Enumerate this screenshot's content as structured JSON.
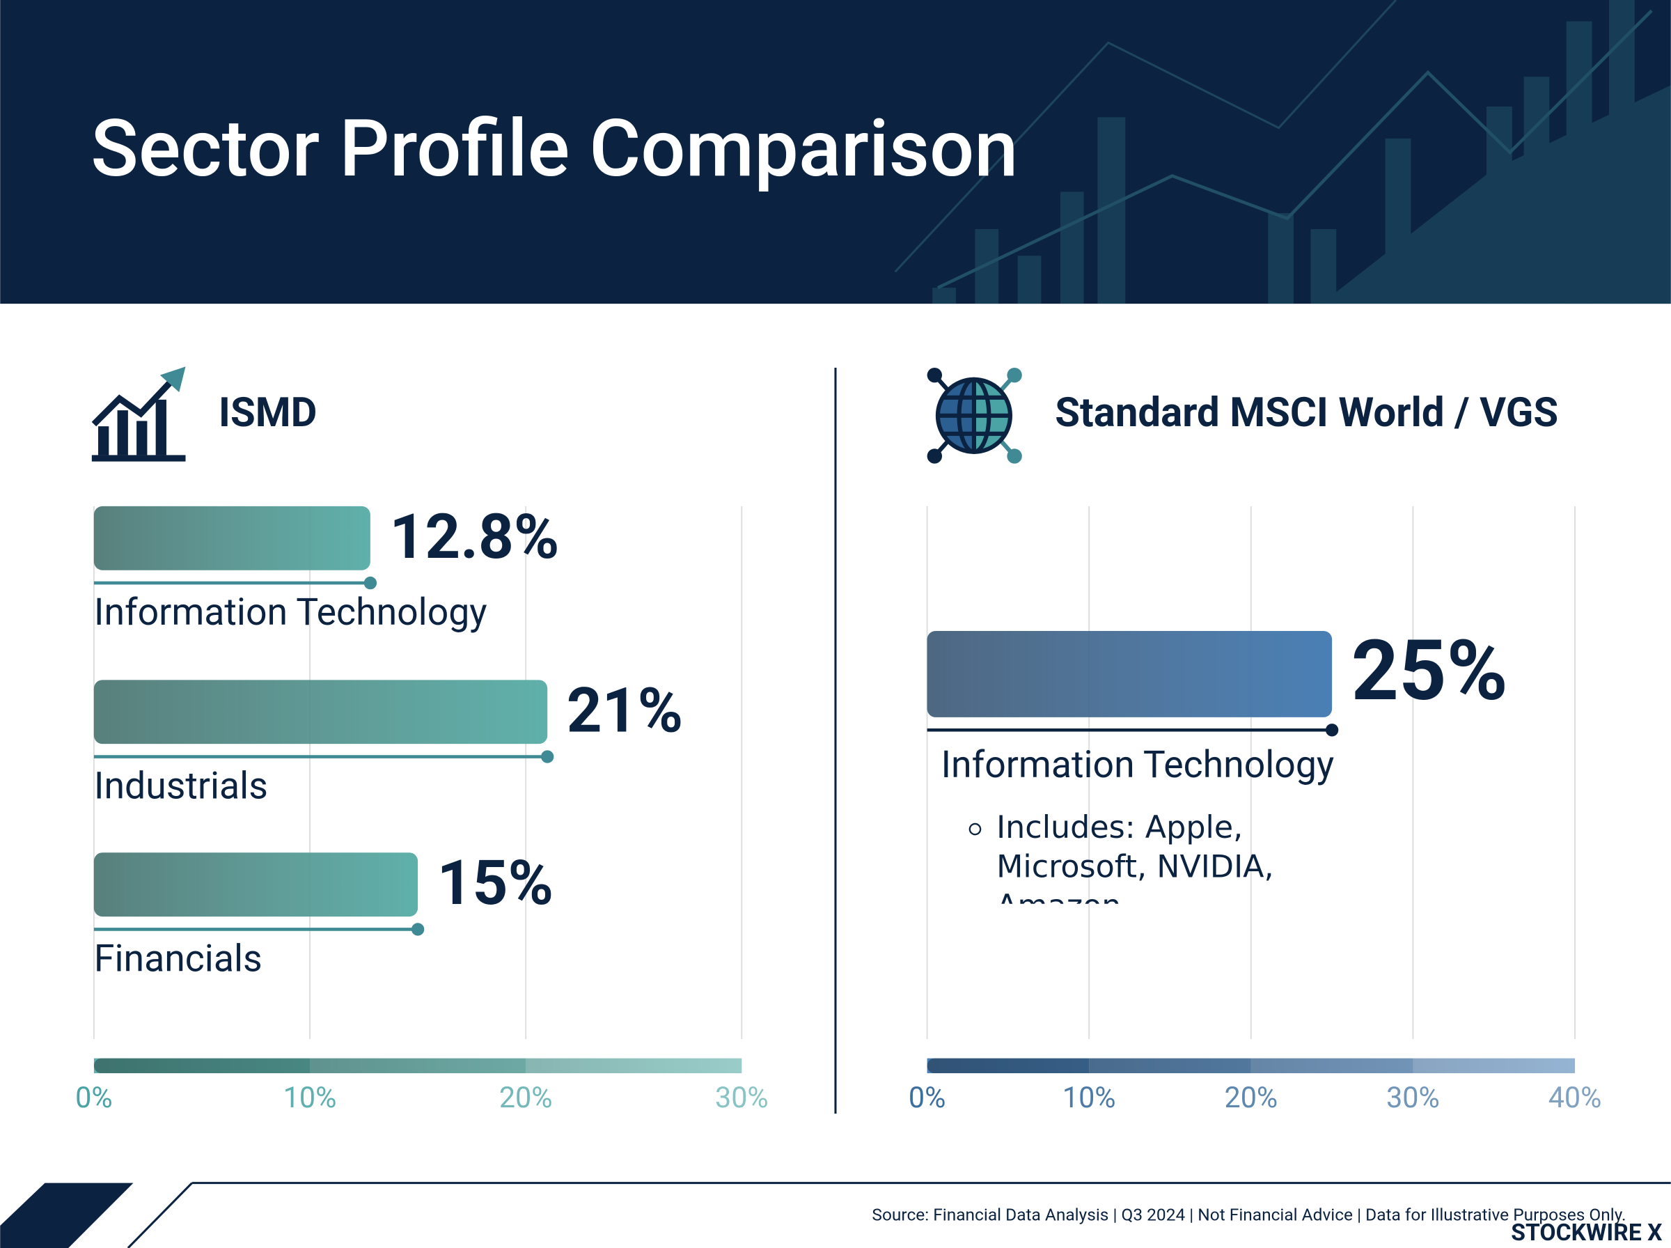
{
  "title": "Sector Profile Comparison",
  "source": "Source: Financial Data Analysis | Q3 2024 | Not Financial Advice | Data for Illustrative Purposes Only.",
  "brand": "STOCKWIRE X",
  "chart_data": [
    {
      "type": "bar",
      "orientation": "horizontal",
      "title": "ISMD",
      "categories": [
        "Information Technology",
        "Industrials",
        "Financials"
      ],
      "values": [
        12.8,
        21,
        15
      ],
      "value_labels": [
        "12.8%",
        "21%",
        "15%"
      ],
      "color": "#5fb0aa",
      "xlim": [
        0,
        30
      ],
      "xticks": [
        {
          "value": 0,
          "label": "0%"
        },
        {
          "value": 10,
          "label": "10%"
        },
        {
          "value": 20,
          "label": "20%"
        },
        {
          "value": 30,
          "label": "30%"
        }
      ],
      "grid": true
    },
    {
      "type": "bar",
      "orientation": "horizontal",
      "title": "Standard MSCI World / VGS",
      "categories": [
        "Information Technology"
      ],
      "values": [
        25
      ],
      "value_labels": [
        "25%"
      ],
      "annotation": "Includes: Apple, Microsoft, NVIDIA, Amazon",
      "color": "#4a7fb5",
      "xlim": [
        0,
        40
      ],
      "xticks": [
        {
          "value": 0,
          "label": "0%"
        },
        {
          "value": 10,
          "label": "10%"
        },
        {
          "value": 20,
          "label": "20%"
        },
        {
          "value": 30,
          "label": "30%"
        },
        {
          "value": 40,
          "label": "40%"
        }
      ],
      "grid": true
    }
  ]
}
